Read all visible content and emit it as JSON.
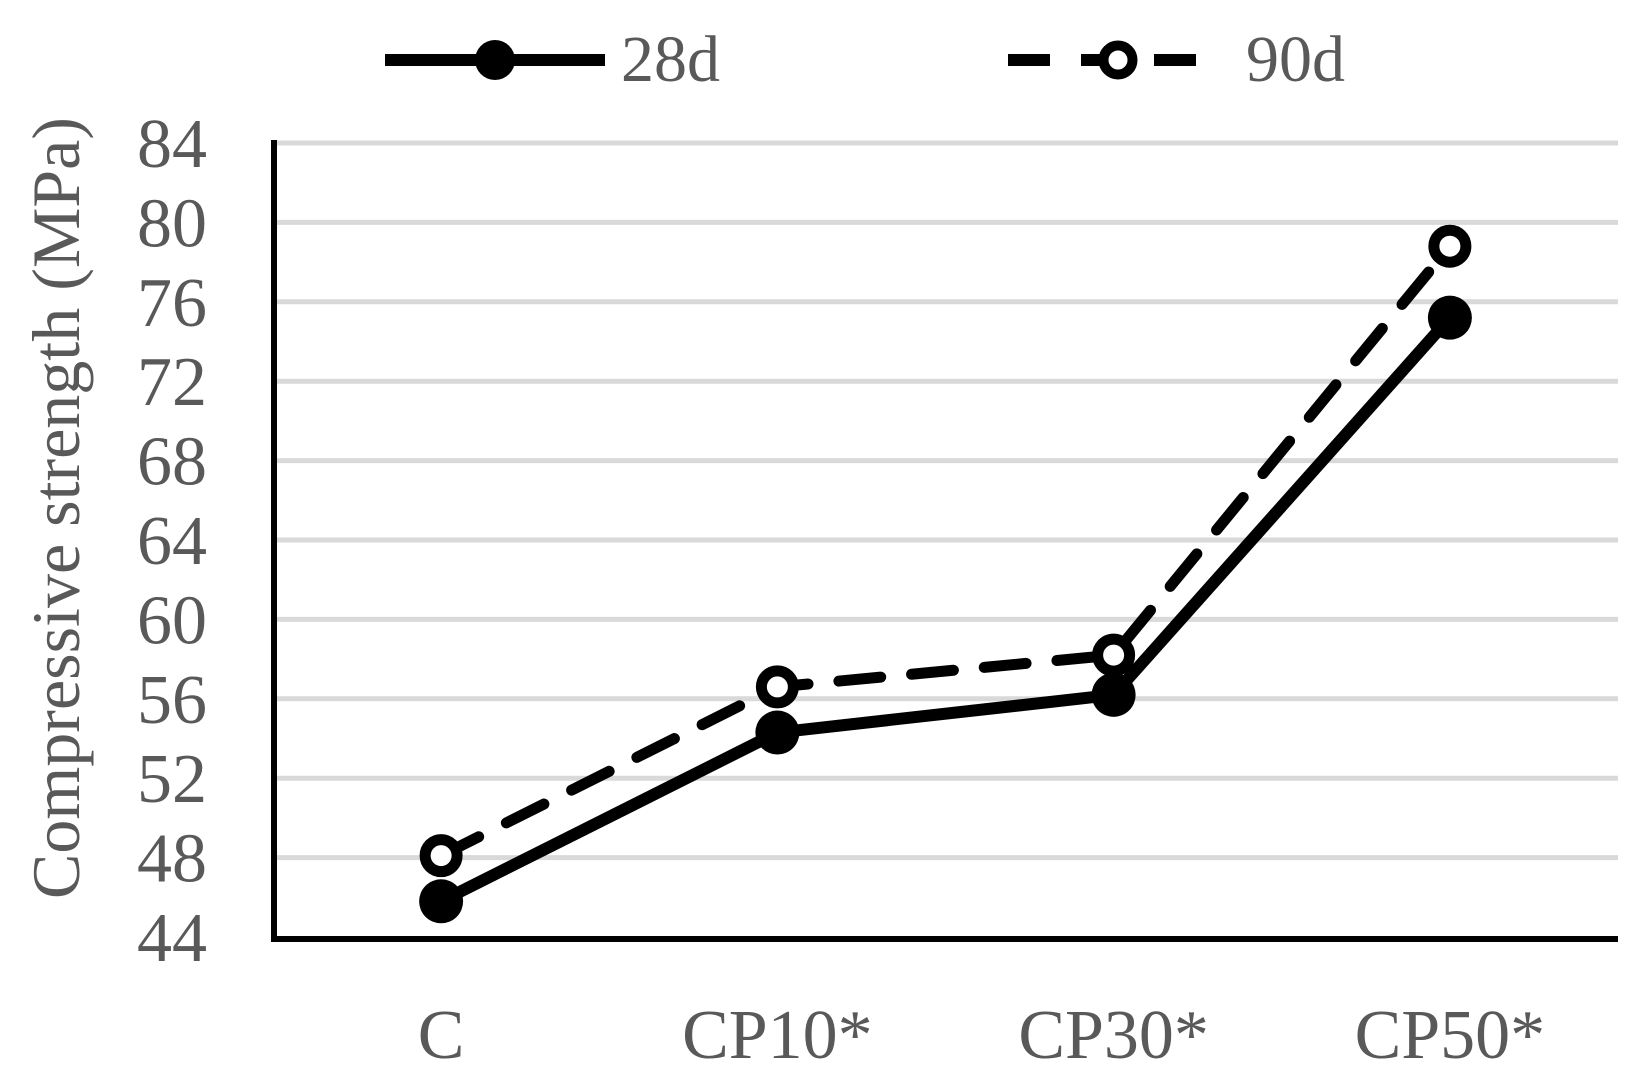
{
  "chart_data": {
    "type": "line",
    "categories": [
      "C",
      "CP10*",
      "CP30*",
      "CP50*"
    ],
    "series": [
      {
        "name": "28d",
        "values": [
          45.8,
          54.3,
          56.2,
          75.2
        ],
        "line_style": "solid",
        "marker": "filled-circle"
      },
      {
        "name": "90d",
        "values": [
          48.1,
          56.6,
          58.2,
          78.8
        ],
        "line_style": "dashed",
        "marker": "open-circle"
      }
    ],
    "xlabel": "",
    "ylabel": "Compressive strength (MPa)",
    "ylim": [
      44,
      84
    ],
    "yticks": [
      44,
      48,
      52,
      56,
      60,
      64,
      68,
      72,
      76,
      80,
      84
    ],
    "grid": "horizontal-only",
    "legend_position": "top",
    "colors": {
      "series": "#000000",
      "gridline": "#d9d9d9",
      "axis": "#000000",
      "text": "#595959",
      "background": "#ffffff"
    }
  }
}
